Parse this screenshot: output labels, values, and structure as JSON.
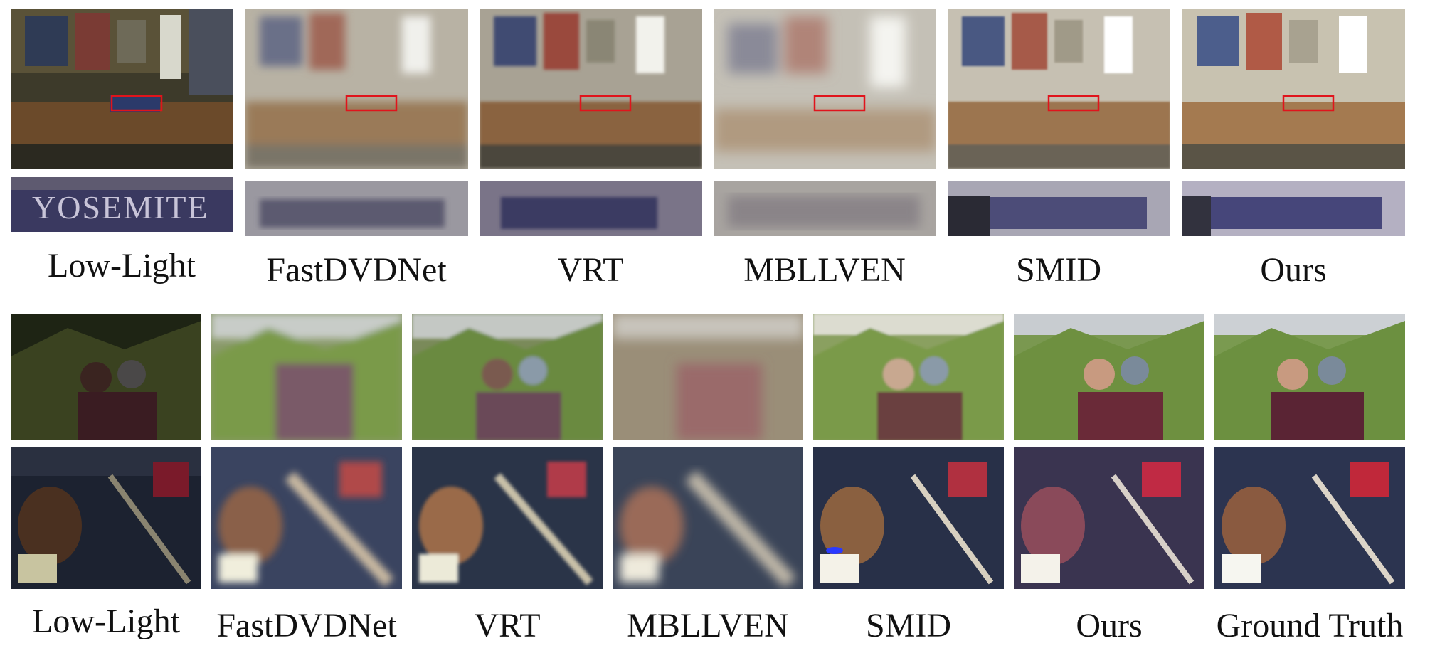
{
  "figure": {
    "top_row": {
      "crop_text": "YOSEMITE",
      "methods": [
        "Low-Light",
        "FastDVDNet",
        "VRT",
        "MBLLVEN",
        "SMID",
        "Ours"
      ]
    },
    "bottom_row": {
      "methods": [
        "Low-Light",
        "FastDVDNet",
        "VRT",
        "MBLLVEN",
        "SMID",
        "Ours",
        "Ground Truth"
      ]
    }
  },
  "colors": {
    "highlight_box": "#e0141c",
    "background": "#ffffff"
  }
}
